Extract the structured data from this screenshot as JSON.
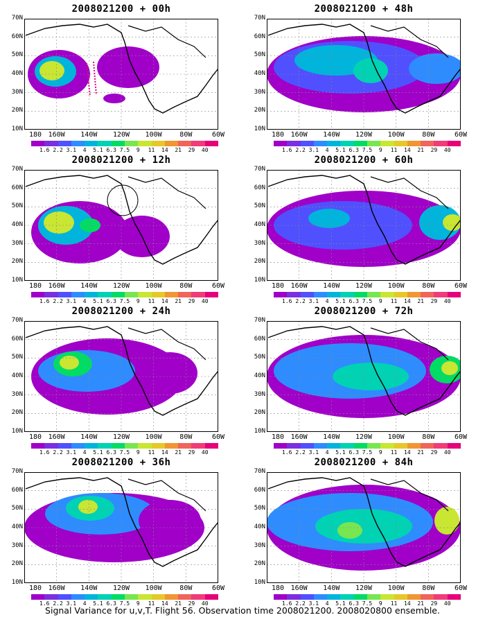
{
  "panels": [
    {
      "title": "2008021200 + 00h"
    },
    {
      "title": "2008021200 + 48h"
    },
    {
      "title": "2008021200 + 12h"
    },
    {
      "title": "2008021200 + 60h"
    },
    {
      "title": "2008021200 + 24h"
    },
    {
      "title": "2008021200 + 72h"
    },
    {
      "title": "2008021200 + 36h"
    },
    {
      "title": "2008021200 + 84h"
    }
  ],
  "lat_labels": [
    "70N",
    "60N",
    "50N",
    "40N",
    "30N",
    "20N",
    "10N"
  ],
  "lon_labels": [
    "180",
    "160W",
    "140W",
    "120W",
    "100W",
    "80W",
    "60W"
  ],
  "colorbar": {
    "labels": [
      "1.6",
      "2.2",
      "3.1",
      "4",
      "5.1",
      "6.3",
      "7.5",
      "9",
      "11",
      "14",
      "21",
      "29",
      "40"
    ],
    "colors": [
      "#a000c8",
      "#7a2fe0",
      "#5050ff",
      "#2e8cff",
      "#00b4dc",
      "#00d2b4",
      "#00dc64",
      "#78e650",
      "#c8e632",
      "#e6c828",
      "#f09632",
      "#f0645a",
      "#f03c78",
      "#e6007a"
    ]
  },
  "caption": "Signal Variance for u,v,T. Flight 56. Observation time 2008021200. 2008020800 ensemble."
}
